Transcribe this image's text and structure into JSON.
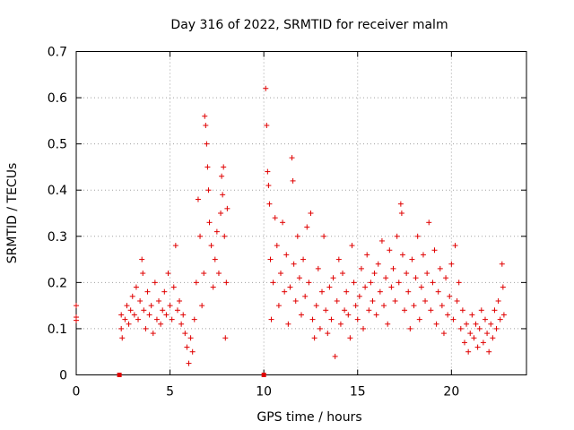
{
  "chart_data": {
    "type": "scatter",
    "title": "Day 316 of 2022, SRMTID for receiver malm",
    "xlabel": "GPS time / hours",
    "ylabel": "SRMTID / TECUs",
    "xlim": [
      0,
      24
    ],
    "ylim": [
      0,
      0.7
    ],
    "xticks": [
      0,
      5,
      10,
      15,
      20
    ],
    "xtick_labels": [
      "0",
      "5",
      "10",
      "15",
      "20"
    ],
    "yticks": [
      0,
      0.1,
      0.2,
      0.3,
      0.4,
      0.5,
      0.6,
      0.7
    ],
    "ytick_labels": [
      "0",
      "0.1",
      "0.2",
      "0.3",
      "0.4",
      "0.5",
      "0.6",
      "0.7"
    ],
    "grid": true,
    "marker": "plus",
    "color": "#e00000",
    "series": [
      {
        "name": "SRMTID",
        "points": [
          [
            0.0,
            0.15
          ],
          [
            0.0,
            0.125
          ],
          [
            0.0,
            0.118
          ],
          [
            2.4,
            0.13
          ],
          [
            2.4,
            0.1
          ],
          [
            2.45,
            0.08
          ],
          [
            2.6,
            0.12
          ],
          [
            2.7,
            0.15
          ],
          [
            2.8,
            0.11
          ],
          [
            2.9,
            0.14
          ],
          [
            3.0,
            0.17
          ],
          [
            3.1,
            0.13
          ],
          [
            3.2,
            0.19
          ],
          [
            3.3,
            0.12
          ],
          [
            3.4,
            0.16
          ],
          [
            3.5,
            0.25
          ],
          [
            3.55,
            0.22
          ],
          [
            3.6,
            0.14
          ],
          [
            3.7,
            0.1
          ],
          [
            3.8,
            0.18
          ],
          [
            3.9,
            0.13
          ],
          [
            4.0,
            0.15
          ],
          [
            4.1,
            0.09
          ],
          [
            4.2,
            0.2
          ],
          [
            4.3,
            0.12
          ],
          [
            4.4,
            0.16
          ],
          [
            4.5,
            0.11
          ],
          [
            4.6,
            0.14
          ],
          [
            4.7,
            0.18
          ],
          [
            4.8,
            0.13
          ],
          [
            4.9,
            0.22
          ],
          [
            5.0,
            0.15
          ],
          [
            5.1,
            0.12
          ],
          [
            5.2,
            0.19
          ],
          [
            5.3,
            0.28
          ],
          [
            5.4,
            0.14
          ],
          [
            5.5,
            0.16
          ],
          [
            5.6,
            0.11
          ],
          [
            5.7,
            0.13
          ],
          [
            5.8,
            0.09
          ],
          [
            5.9,
            0.06
          ],
          [
            6.0,
            0.025
          ],
          [
            6.1,
            0.08
          ],
          [
            6.2,
            0.05
          ],
          [
            6.3,
            0.12
          ],
          [
            6.4,
            0.2
          ],
          [
            6.5,
            0.38
          ],
          [
            6.6,
            0.3
          ],
          [
            6.7,
            0.15
          ],
          [
            6.8,
            0.22
          ],
          [
            6.85,
            0.56
          ],
          [
            6.9,
            0.54
          ],
          [
            6.95,
            0.5
          ],
          [
            7.0,
            0.45
          ],
          [
            7.05,
            0.4
          ],
          [
            7.1,
            0.33
          ],
          [
            7.2,
            0.28
          ],
          [
            7.3,
            0.19
          ],
          [
            7.4,
            0.25
          ],
          [
            7.5,
            0.31
          ],
          [
            7.6,
            0.22
          ],
          [
            7.7,
            0.35
          ],
          [
            7.75,
            0.43
          ],
          [
            7.8,
            0.39
          ],
          [
            7.85,
            0.45
          ],
          [
            7.9,
            0.3
          ],
          [
            7.95,
            0.08
          ],
          [
            8.0,
            0.2
          ],
          [
            8.05,
            0.36
          ],
          [
            10.1,
            0.62
          ],
          [
            10.15,
            0.54
          ],
          [
            10.2,
            0.44
          ],
          [
            10.25,
            0.41
          ],
          [
            10.3,
            0.37
          ],
          [
            10.35,
            0.25
          ],
          [
            10.4,
            0.12
          ],
          [
            10.5,
            0.2
          ],
          [
            10.6,
            0.34
          ],
          [
            10.7,
            0.28
          ],
          [
            10.8,
            0.15
          ],
          [
            10.9,
            0.22
          ],
          [
            11.0,
            0.33
          ],
          [
            11.1,
            0.18
          ],
          [
            11.2,
            0.26
          ],
          [
            11.3,
            0.11
          ],
          [
            11.4,
            0.19
          ],
          [
            11.5,
            0.47
          ],
          [
            11.55,
            0.42
          ],
          [
            11.6,
            0.24
          ],
          [
            11.7,
            0.16
          ],
          [
            11.8,
            0.3
          ],
          [
            11.9,
            0.21
          ],
          [
            12.0,
            0.13
          ],
          [
            12.1,
            0.25
          ],
          [
            12.2,
            0.17
          ],
          [
            12.3,
            0.32
          ],
          [
            12.4,
            0.2
          ],
          [
            12.5,
            0.35
          ],
          [
            12.6,
            0.12
          ],
          [
            12.7,
            0.08
          ],
          [
            12.8,
            0.15
          ],
          [
            12.9,
            0.23
          ],
          [
            13.0,
            0.1
          ],
          [
            13.1,
            0.18
          ],
          [
            13.2,
            0.3
          ],
          [
            13.3,
            0.14
          ],
          [
            13.4,
            0.09
          ],
          [
            13.5,
            0.19
          ],
          [
            13.6,
            0.12
          ],
          [
            13.7,
            0.21
          ],
          [
            13.8,
            0.04
          ],
          [
            13.9,
            0.16
          ],
          [
            14.0,
            0.25
          ],
          [
            14.1,
            0.11
          ],
          [
            14.2,
            0.22
          ],
          [
            14.3,
            0.14
          ],
          [
            14.4,
            0.18
          ],
          [
            14.5,
            0.13
          ],
          [
            14.6,
            0.08
          ],
          [
            14.7,
            0.28
          ],
          [
            14.8,
            0.2
          ],
          [
            14.9,
            0.15
          ],
          [
            15.0,
            0.12
          ],
          [
            15.1,
            0.17
          ],
          [
            15.2,
            0.23
          ],
          [
            15.3,
            0.1
          ],
          [
            15.4,
            0.19
          ],
          [
            15.5,
            0.26
          ],
          [
            15.6,
            0.14
          ],
          [
            15.7,
            0.2
          ],
          [
            15.8,
            0.16
          ],
          [
            15.9,
            0.22
          ],
          [
            16.0,
            0.13
          ],
          [
            16.1,
            0.24
          ],
          [
            16.2,
            0.18
          ],
          [
            16.3,
            0.29
          ],
          [
            16.4,
            0.15
          ],
          [
            16.5,
            0.21
          ],
          [
            16.6,
            0.11
          ],
          [
            16.7,
            0.27
          ],
          [
            16.8,
            0.19
          ],
          [
            16.9,
            0.23
          ],
          [
            17.0,
            0.16
          ],
          [
            17.1,
            0.3
          ],
          [
            17.2,
            0.2
          ],
          [
            17.3,
            0.37
          ],
          [
            17.35,
            0.35
          ],
          [
            17.4,
            0.26
          ],
          [
            17.5,
            0.14
          ],
          [
            17.6,
            0.22
          ],
          [
            17.7,
            0.18
          ],
          [
            17.8,
            0.1
          ],
          [
            17.9,
            0.25
          ],
          [
            18.0,
            0.15
          ],
          [
            18.1,
            0.21
          ],
          [
            18.2,
            0.3
          ],
          [
            18.3,
            0.12
          ],
          [
            18.4,
            0.19
          ],
          [
            18.5,
            0.26
          ],
          [
            18.6,
            0.16
          ],
          [
            18.7,
            0.22
          ],
          [
            18.8,
            0.33
          ],
          [
            18.9,
            0.14
          ],
          [
            19.0,
            0.2
          ],
          [
            19.1,
            0.27
          ],
          [
            19.2,
            0.11
          ],
          [
            19.3,
            0.18
          ],
          [
            19.4,
            0.23
          ],
          [
            19.5,
            0.15
          ],
          [
            19.6,
            0.09
          ],
          [
            19.7,
            0.21
          ],
          [
            19.8,
            0.13
          ],
          [
            19.9,
            0.17
          ],
          [
            20.0,
            0.24
          ],
          [
            20.1,
            0.12
          ],
          [
            20.2,
            0.28
          ],
          [
            20.3,
            0.16
          ],
          [
            20.4,
            0.2
          ],
          [
            20.5,
            0.1
          ],
          [
            20.6,
            0.14
          ],
          [
            20.7,
            0.07
          ],
          [
            20.8,
            0.11
          ],
          [
            20.9,
            0.05
          ],
          [
            21.0,
            0.09
          ],
          [
            21.1,
            0.13
          ],
          [
            21.2,
            0.08
          ],
          [
            21.3,
            0.11
          ],
          [
            21.4,
            0.06
          ],
          [
            21.5,
            0.1
          ],
          [
            21.6,
            0.14
          ],
          [
            21.7,
            0.07
          ],
          [
            21.8,
            0.12
          ],
          [
            21.9,
            0.09
          ],
          [
            22.0,
            0.05
          ],
          [
            22.1,
            0.11
          ],
          [
            22.2,
            0.08
          ],
          [
            22.3,
            0.14
          ],
          [
            22.4,
            0.1
          ],
          [
            22.5,
            0.16
          ],
          [
            22.6,
            0.12
          ],
          [
            22.7,
            0.24
          ],
          [
            22.75,
            0.19
          ],
          [
            22.8,
            0.13
          ]
        ]
      }
    ],
    "no_data_markers": [
      2.3,
      10.0
    ]
  }
}
